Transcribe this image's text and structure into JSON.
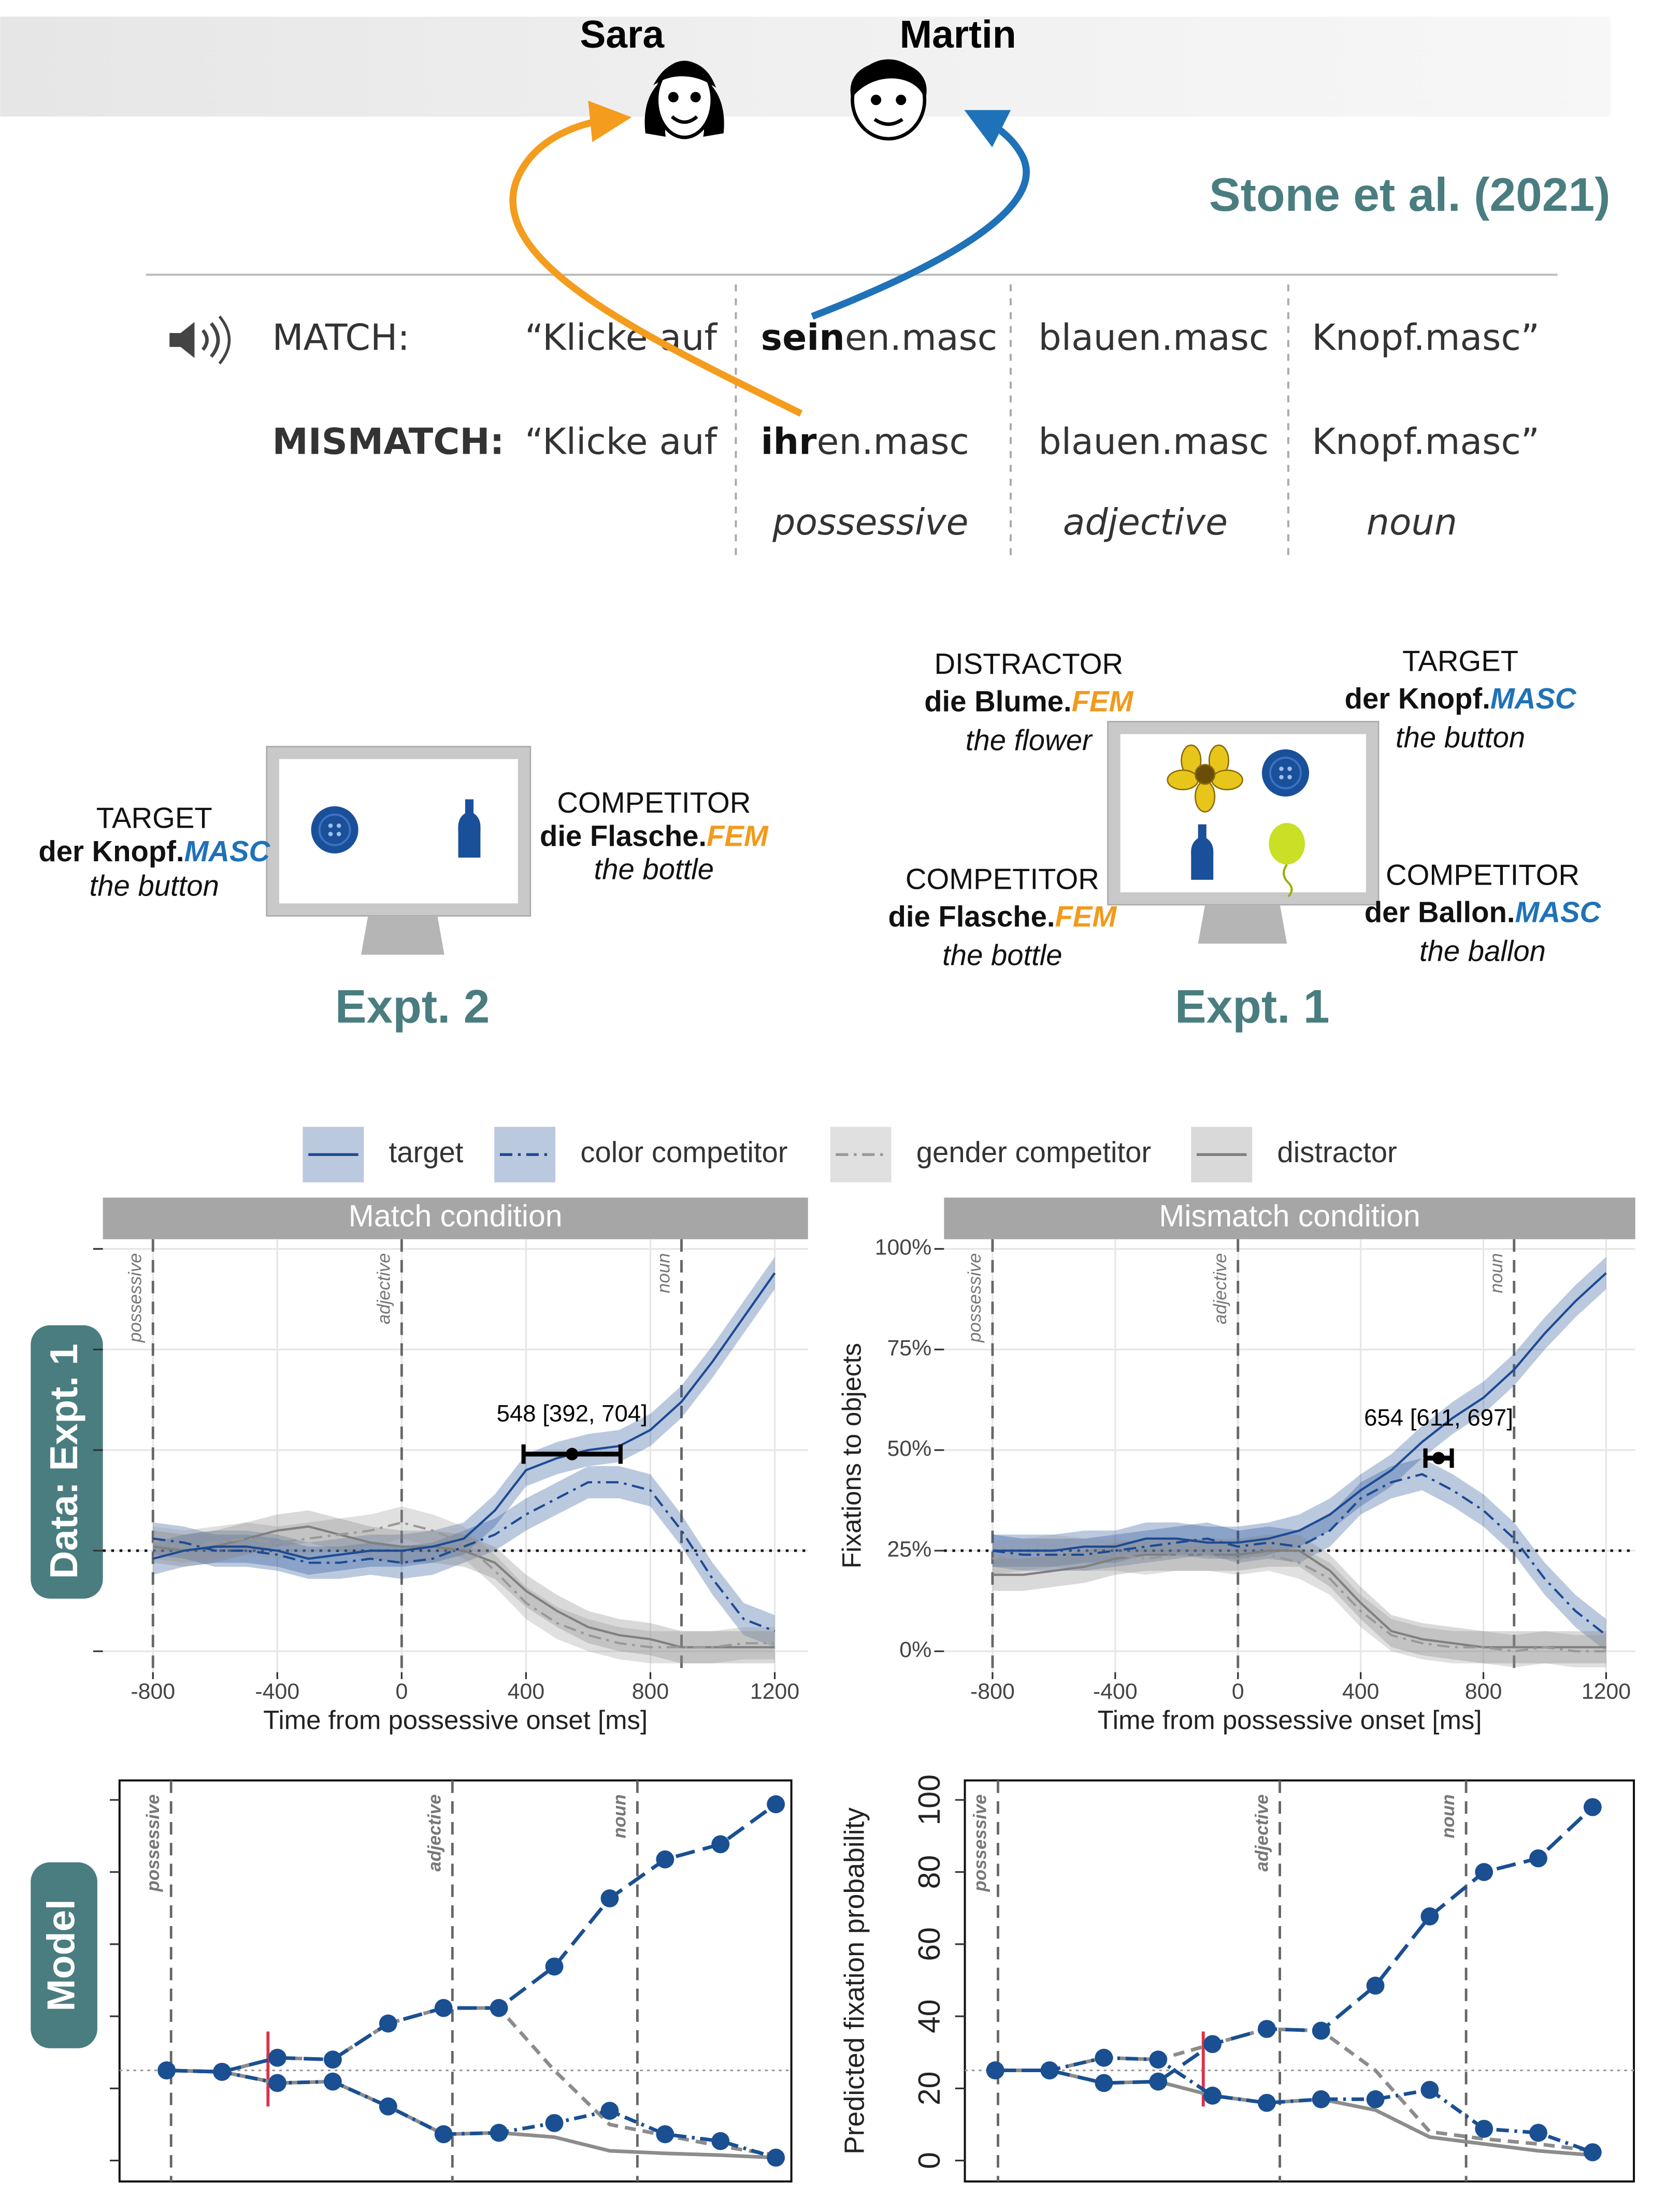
{
  "header": {
    "characters": [
      "Sara",
      "Martin"
    ],
    "citation": "Stone et al. (2021)"
  },
  "stimuli": {
    "rows": [
      {
        "condition": "MATCH:",
        "verb": "“Klicke auf",
        "possessive": {
          "stem": "sein",
          "suffix": "en.masc"
        },
        "adjective": "blauen.masc",
        "noun": "Knopf.masc”"
      },
      {
        "condition": "MISMATCH:",
        "verb": "“Klicke auf",
        "possessive": {
          "stem": "ihr",
          "suffix": "en.masc"
        },
        "adjective": "blauen.masc",
        "noun": "Knopf.masc”"
      }
    ],
    "regions": [
      "possessive",
      "adjective",
      "noun"
    ]
  },
  "gender_colors": {
    "MASC": "#1f72b8",
    "FEM": "#f29a1c"
  },
  "displays": [
    {
      "title": "Expt. 2",
      "objects": [
        {
          "role": "TARGET",
          "phrase": "der Knopf.",
          "gender": "MASC",
          "gloss": "the button"
        },
        {
          "role": "COMPETITOR",
          "phrase": "die Flasche.",
          "gender": "FEM",
          "gloss": "the bottle"
        }
      ]
    },
    {
      "title": "Expt. 1",
      "objects": [
        {
          "role": "DISTRACTOR",
          "phrase": "die Blume.",
          "gender": "FEM",
          "gloss": "the flower"
        },
        {
          "role": "TARGET",
          "phrase": "der Knopf.",
          "gender": "MASC",
          "gloss": "the button"
        },
        {
          "role": "COMPETITOR",
          "phrase": "die Flasche.",
          "gender": "FEM",
          "gloss": "the bottle"
        },
        {
          "role": "COMPETITOR",
          "phrase": "der Ballon.",
          "gender": "MASC",
          "gloss": "the ballon"
        }
      ]
    }
  ],
  "row_labels": [
    "Data: Expt. 1",
    "Model"
  ],
  "chart_data": [
    {
      "type": "line",
      "title": "Match condition",
      "xlabel": "Time from possessive onset [ms]",
      "x": [
        -800,
        -700,
        -600,
        -500,
        -400,
        -300,
        -200,
        -100,
        0,
        100,
        200,
        300,
        400,
        500,
        600,
        700,
        800,
        900,
        1000,
        1100,
        1200
      ],
      "xlim": [
        -961,
        1307
      ],
      "ylim": [
        -5.2,
        102.4
      ],
      "xticks": [
        -800,
        -400,
        0,
        400,
        800,
        1200
      ],
      "yticks": [
        {
          "value": 0,
          "label": "0%"
        },
        {
          "value": 25,
          "label": "25%"
        },
        {
          "value": 50,
          "label": "50%"
        },
        {
          "value": 75,
          "label": "75%"
        },
        {
          "value": 100,
          "label": "100%"
        }
      ],
      "ytick_labels": false,
      "grid": true,
      "reference_line": 25,
      "vlines": [
        {
          "x": -800,
          "label": "possessive"
        },
        {
          "x": 0,
          "label": "adjective"
        },
        {
          "x": 900,
          "label": "noun"
        }
      ],
      "annotation": {
        "text": "548 [392, 704]",
        "estimate": 548,
        "lower": 392,
        "upper": 704,
        "y": 49
      },
      "series": [
        {
          "name": "target",
          "color": "#1d4b94",
          "dash": "solid",
          "band": 4,
          "values": [
            23,
            25,
            26,
            26,
            25,
            23,
            24,
            25,
            25,
            26,
            28,
            35,
            45,
            48,
            50,
            51,
            55,
            62,
            72,
            83,
            94
          ]
        },
        {
          "name": "color competitor",
          "color": "#1d4b94",
          "dash": "dashdot",
          "band": 4,
          "values": [
            28,
            27,
            25,
            25,
            24,
            22,
            22,
            23,
            22,
            23,
            26,
            29,
            34,
            38,
            42,
            42,
            40,
            30,
            18,
            8,
            5
          ]
        },
        {
          "name": "gender competitor",
          "color": "#999999",
          "dash": "dashdot",
          "band": 4,
          "values": [
            27,
            26,
            27,
            28,
            27,
            28,
            29,
            30,
            32,
            30,
            27,
            20,
            12,
            7,
            4,
            2,
            1,
            1,
            1,
            2,
            2
          ]
        },
        {
          "name": "distractor",
          "color": "#808080",
          "dash": "solid",
          "band": 4,
          "values": [
            26,
            25,
            26,
            28,
            30,
            31,
            29,
            27,
            26,
            26,
            25,
            22,
            15,
            10,
            6,
            4,
            3,
            1,
            1,
            1,
            1
          ]
        }
      ]
    },
    {
      "type": "line",
      "title": "Mismatch condition",
      "xlabel": "Time from possessive onset [ms]",
      "ylabel": "Fixations to objects",
      "x": [
        -800,
        -700,
        -600,
        -500,
        -400,
        -300,
        -200,
        -100,
        0,
        100,
        200,
        300,
        400,
        500,
        600,
        700,
        800,
        900,
        1000,
        1100,
        1200
      ],
      "xlim": [
        -958,
        1295
      ],
      "ylim": [
        -5.2,
        102.4
      ],
      "xticks": [
        -800,
        -400,
        0,
        400,
        800,
        1200
      ],
      "yticks": [
        {
          "value": 0,
          "label": "0%"
        },
        {
          "value": 25,
          "label": "25%"
        },
        {
          "value": 50,
          "label": "50%"
        },
        {
          "value": 75,
          "label": "75%"
        },
        {
          "value": 100,
          "label": "100%"
        }
      ],
      "ytick_labels": true,
      "grid": true,
      "reference_line": 25,
      "vlines": [
        {
          "x": -800,
          "label": "possessive"
        },
        {
          "x": 0,
          "label": "adjective"
        },
        {
          "x": 900,
          "label": "noun"
        }
      ],
      "annotation": {
        "text": "654 [611, 697]",
        "estimate": 654,
        "lower": 611,
        "upper": 697,
        "y": 48
      },
      "series": [
        {
          "name": "target",
          "color": "#1d4b94",
          "dash": "solid",
          "band": 4,
          "values": [
            25,
            25,
            25,
            26,
            26,
            28,
            28,
            27,
            27,
            28,
            30,
            34,
            40,
            45,
            52,
            58,
            63,
            70,
            79,
            87,
            94
          ]
        },
        {
          "name": "color competitor",
          "color": "#1d4b94",
          "dash": "dashdot",
          "band": 4,
          "values": [
            25,
            24,
            24,
            24,
            25,
            26,
            27,
            28,
            26,
            27,
            26,
            30,
            38,
            42,
            44,
            40,
            35,
            28,
            18,
            10,
            4
          ]
        },
        {
          "name": "gender competitor",
          "color": "#999999",
          "dash": "dashdot",
          "band": 4,
          "values": [
            23,
            24,
            25,
            24,
            24,
            23,
            24,
            24,
            23,
            24,
            22,
            18,
            10,
            4,
            2,
            1,
            1,
            0,
            1,
            0,
            0
          ]
        },
        {
          "name": "distractor",
          "color": "#808080",
          "dash": "solid",
          "band": 4,
          "values": [
            19,
            19,
            20,
            21,
            23,
            24,
            24,
            24,
            24,
            25,
            25,
            20,
            12,
            5,
            3,
            2,
            1,
            1,
            1,
            1,
            1
          ]
        }
      ]
    },
    {
      "type": "line",
      "categories": [
        null,
        null,
        null,
        null,
        null,
        null,
        null,
        null,
        null,
        null,
        null,
        null
      ],
      "xlim": [
        -0.85,
        11.28
      ],
      "ylim": [
        -5.8,
        105.4
      ],
      "yticks": [
        0,
        20,
        40,
        60,
        80,
        100
      ],
      "ytick_labels": false,
      "frame": true,
      "reference_line": 25,
      "switch": 1.83,
      "vlines": [
        {
          "x": 0.08,
          "label": "possessive"
        },
        {
          "x": 5.16,
          "label": "adjective"
        },
        {
          "x": 8.5,
          "label": "noun"
        }
      ],
      "series": [
        {
          "color": "#1a4f92",
          "dash": "longdash",
          "markers": true,
          "values": [
            25,
            24.6,
            28.5,
            28,
            38,
            42.3,
            42.3,
            53.8,
            72.7,
            83.5,
            87.7,
            98.8
          ]
        },
        {
          "color": "#1a4f92",
          "dash": "dashdot",
          "markers": true,
          "values": [
            25,
            24.6,
            21.5,
            21.9,
            15,
            7.3,
            7.7,
            10.4,
            13.8,
            7.3,
            5.4,
            0.8
          ]
        },
        {
          "color": "#8c8c8c",
          "dash": "dashed",
          "values": [
            25,
            24.6,
            28.5,
            28,
            38,
            42.3,
            42.3,
            25,
            10,
            7,
            4,
            1.5
          ]
        },
        {
          "color": "#8c8c8c",
          "dash": "solid",
          "values": [
            25,
            24.6,
            21.5,
            21.9,
            15,
            7.3,
            7.7,
            6.5,
            2.7,
            2,
            1.5,
            0.8
          ]
        }
      ]
    },
    {
      "type": "line",
      "categories": [
        null,
        null,
        null,
        null,
        null,
        null,
        null,
        null,
        null,
        null,
        null,
        null
      ],
      "ylabel": "Predicted fixation probability",
      "xlim": [
        -0.56,
        11.76
      ],
      "ylim": [
        -5.8,
        105.4
      ],
      "yticks": [
        0,
        20,
        40,
        60,
        80,
        100
      ],
      "ytick_labels": true,
      "frame": true,
      "reference_line": 25,
      "switch": 3.83,
      "vlines": [
        {
          "x": 0.05,
          "label": "possessive"
        },
        {
          "x": 5.24,
          "label": "adjective"
        },
        {
          "x": 8.67,
          "label": "noun"
        }
      ],
      "series": [
        {
          "color": "#1a4f92",
          "dash": "longdash",
          "markers": true,
          "values": [
            25,
            25,
            21.5,
            21.9,
            32.3,
            36.5,
            36,
            48.5,
            67.7,
            80,
            83.8,
            98
          ]
        },
        {
          "color": "#1a4f92",
          "dash": "dashdot",
          "markers": true,
          "values": [
            25,
            25,
            28.5,
            28,
            18,
            16,
            17,
            17,
            19.6,
            8.8,
            7.7,
            2.3
          ]
        },
        {
          "color": "#8c8c8c",
          "dash": "dashed",
          "values": [
            25,
            25,
            28.5,
            28,
            32.3,
            36.5,
            36,
            25,
            8,
            6,
            4.6,
            2.7
          ]
        },
        {
          "color": "#8c8c8c",
          "dash": "solid",
          "values": [
            25,
            25,
            21.5,
            21.9,
            18,
            16,
            17,
            14,
            6.5,
            4.6,
            2.7,
            1.5
          ]
        }
      ]
    }
  ]
}
